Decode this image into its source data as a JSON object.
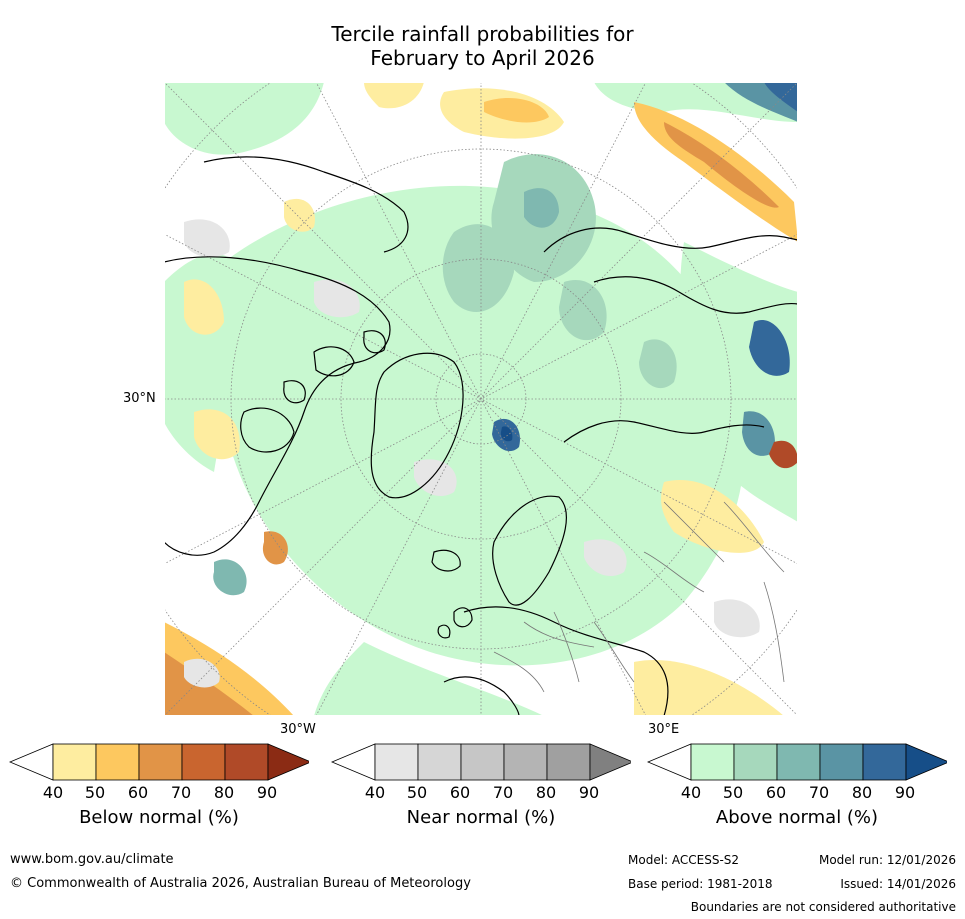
{
  "title_line1": "Tercile rainfall probabilities for",
  "title_line2": "February to April 2026",
  "map": {
    "lat_label": "30°N",
    "lon_label_left": "30°W",
    "lon_label_right": "30°E"
  },
  "colorbars": [
    {
      "label": "Below normal (%)",
      "ticks": [
        "40",
        "50",
        "60",
        "70",
        "80",
        "90"
      ],
      "colors": [
        "#ffffff",
        "#feeda0",
        "#fdc85f",
        "#e19447",
        "#c9652f",
        "#b04a28",
        "#8b2b14"
      ]
    },
    {
      "label": "Near normal (%)",
      "ticks": [
        "40",
        "50",
        "60",
        "70",
        "80",
        "90"
      ],
      "colors": [
        "#ffffff",
        "#e6e6e6",
        "#d6d6d6",
        "#c6c6c6",
        "#b4b4b4",
        "#a0a0a0",
        "#808080"
      ]
    },
    {
      "label": "Above normal (%)",
      "ticks": [
        "40",
        "50",
        "60",
        "70",
        "80",
        "90"
      ],
      "colors": [
        "#ffffff",
        "#c8f8d0",
        "#a6d8bc",
        "#7fb8b0",
        "#5a94a4",
        "#33689a",
        "#164e88"
      ]
    }
  ],
  "footer": {
    "url": "www.bom.gov.au/climate",
    "copyright": "© Commonwealth of Australia 2026, Australian Bureau of Meteorology",
    "model": "Model: ACCESS-S2",
    "model_run": "Model run: 12/01/2026",
    "base_period": "Base period: 1981-2018",
    "issued": "Issued: 14/01/2026",
    "disclaimer": "Boundaries are not considered authoritative"
  }
}
